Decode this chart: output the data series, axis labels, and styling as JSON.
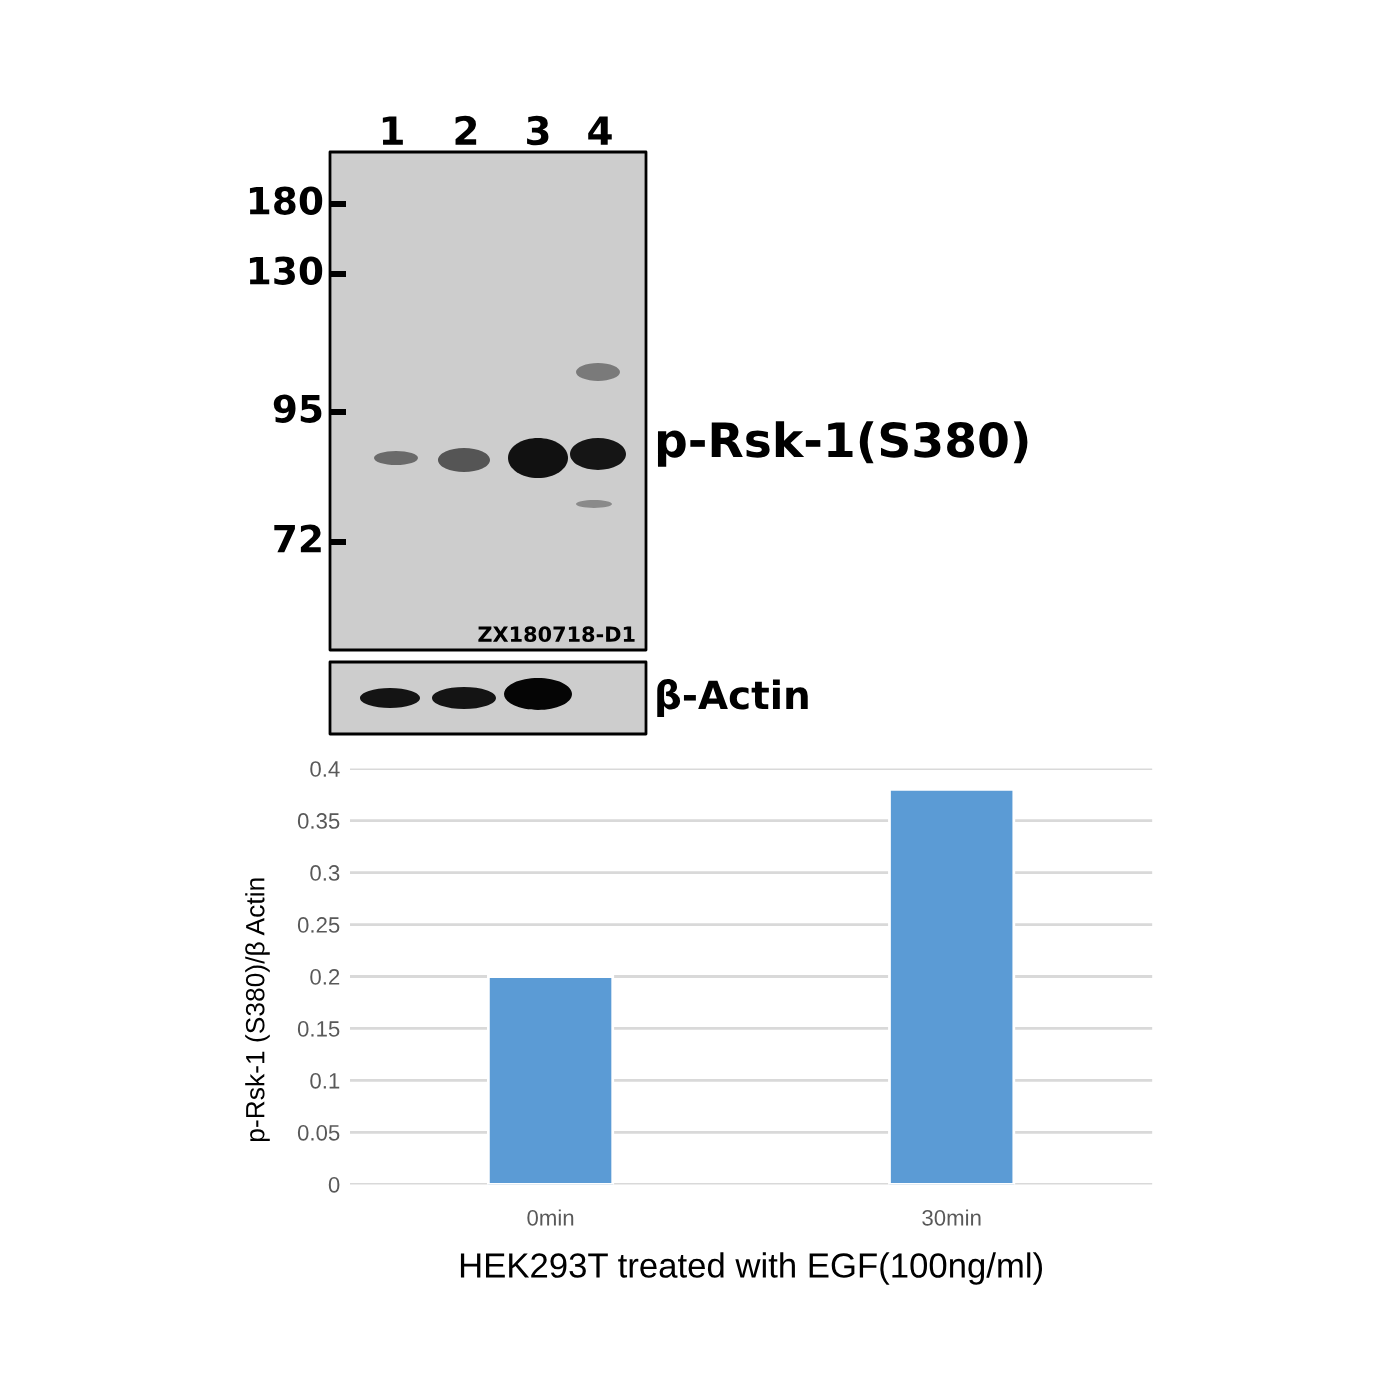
{
  "chart_data": {
    "type": "bar",
    "categories": [
      "0min",
      "30min"
    ],
    "values": [
      0.2,
      0.38
    ],
    "color": "#5b9bd5",
    "ylim": [
      0,
      0.4
    ],
    "yticks": [
      0,
      0.05,
      0.1,
      0.15,
      0.2,
      0.25,
      0.3,
      0.35,
      0.4
    ],
    "grid": "y",
    "xlabel": "HEK293T treated with EGF(100ng/ml)",
    "ylabel": "p-Rsk-1 (S380)/β Actin",
    "annotations": [
      "1",
      "2",
      "3",
      "4",
      "180",
      "130",
      "95",
      "72",
      "p-Rsk-1(S380)",
      "ZX180718-D1",
      "β-Actin"
    ]
  }
}
